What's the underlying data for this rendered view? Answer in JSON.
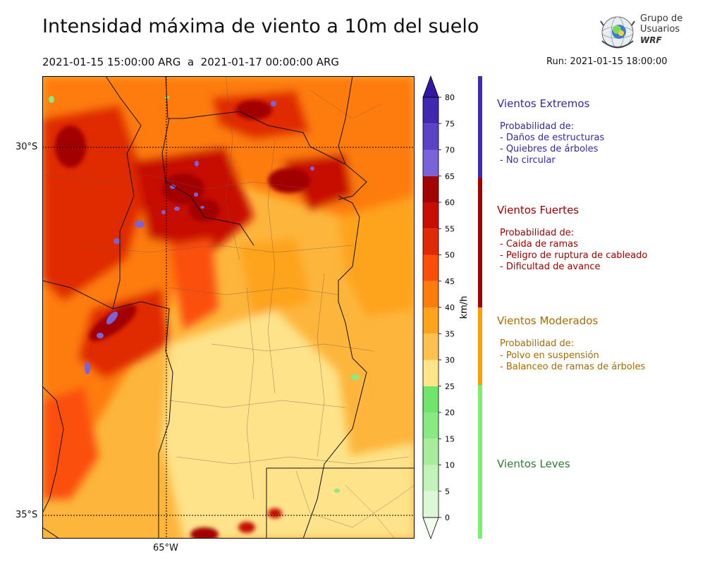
{
  "header": {
    "title": "Intensidad máxima de viento a 10m del suelo",
    "period": "2021-01-15 15:00:00 ARG  a  2021-01-17 00:00:00 ARG",
    "run": "Run: 2021-01-15 18:00:00"
  },
  "logo": {
    "line1": "Grupo de",
    "line2": "Usuarios",
    "line3": "WRF"
  },
  "map": {
    "lat_labels": [
      "30°S",
      "35°S"
    ],
    "lon_labels": [
      "65°W"
    ]
  },
  "chart_data": {
    "type": "heatmap",
    "title": "Intensidad máxima de viento a 10m del suelo",
    "colorbar": {
      "label": "km/h",
      "ticks": [
        0,
        5,
        10,
        15,
        20,
        25,
        30,
        35,
        40,
        45,
        50,
        55,
        60,
        65,
        70,
        75,
        80
      ],
      "tick_labels": [
        "0",
        "5",
        "10",
        "15",
        "20",
        "25",
        "30",
        "35",
        "40",
        "45",
        "50",
        "55",
        "60",
        "65",
        "70",
        "75",
        "80"
      ],
      "colors": [
        "#f2fdf0",
        "#dcf8d6",
        "#c3f3b8",
        "#a6ee9b",
        "#88ea82",
        "#6fe56b",
        "#fee587",
        "#fec04e",
        "#fea31c",
        "#fe7c0c",
        "#fb4f08",
        "#e02a05",
        "#c70e00",
        "#a20404",
        "#7a63d9",
        "#5a41c6",
        "#4128b0",
        "#3416a2"
      ],
      "extend": "both"
    },
    "lat_range": [
      "35.5°S",
      "28.8°S"
    ],
    "lon_range": [
      "67.6°W",
      "57.7°W"
    ]
  },
  "categories": [
    {
      "title": "Vientos Extremos",
      "color": "#3627a8",
      "heading": "Probabilidad de:",
      "items": [
        "- Daños de estructuras",
        "- Quiebres de árboles",
        "- No circular"
      ]
    },
    {
      "title": "Vientos Fuertes",
      "color": "#a10000",
      "heading": "Probabilidad de:",
      "items": [
        "- Caida de ramas",
        "- Peligro de ruptura de cableado",
        "- Dificultad de avance"
      ]
    },
    {
      "title": "Vientos Moderados",
      "color": "#a86c00",
      "heading": "Probabilidad de:",
      "items": [
        "- Polvo en suspensión",
        "- Balanceo de ramas de árboles"
      ]
    },
    {
      "title": "Vientos Leves",
      "color": "#2e7d32",
      "heading": "",
      "items": []
    }
  ],
  "stripe_colors": [
    "#3b2bb5",
    "#a30000",
    "#ff9d00",
    "#77f06f"
  ]
}
